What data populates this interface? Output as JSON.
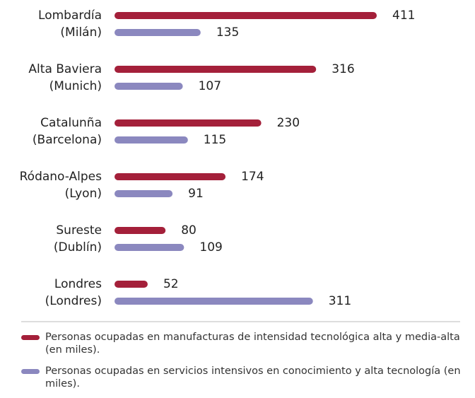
{
  "chart_data": {
    "type": "bar",
    "orientation": "horizontal",
    "categories": [
      [
        "Lombardía",
        "(Milán)"
      ],
      [
        "Alta Baviera",
        "(Munich)"
      ],
      [
        "Catalunña",
        "(Barcelona)"
      ],
      [
        "Ródano-Alpes",
        "(Lyon)"
      ],
      [
        "Sureste",
        "(Dublín)"
      ],
      [
        "Londres",
        "(Londres)"
      ]
    ],
    "series": [
      {
        "name": "Personas ocupadas en manufacturas de intensidad tecnológica alta y media-alta (en miles).",
        "color": "#a4203a",
        "values": [
          411,
          316,
          230,
          174,
          80,
          52
        ]
      },
      {
        "name": "Personas ocupadas en servicios intensivos en conocimiento y alta tecnología (en miles).",
        "color": "#8b88bf",
        "values": [
          135,
          107,
          115,
          91,
          109,
          311
        ]
      }
    ]
  }
}
